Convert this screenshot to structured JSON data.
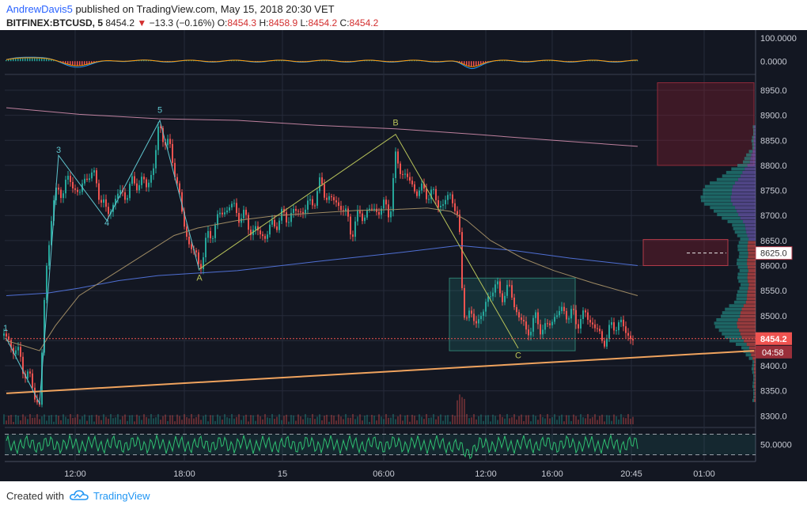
{
  "header": {
    "author": "AndrewDavis5",
    "published": "published on TradingView.com, May 15, 2018 20:30 VET",
    "symbol": "BITFINEX:BTCUSD, 5",
    "last": "8454.2",
    "change": "−13.3 (−0.16%)",
    "o_label": "O:",
    "o": "8454.3",
    "h_label": "H:",
    "h": "8458.9",
    "l_label": "L:",
    "l": "8454.2",
    "c_label": "C:",
    "c": "8454.2"
  },
  "footer": {
    "created_with": "Created with",
    "brand": "TradingView"
  },
  "colors": {
    "background": "#131722",
    "grid": "#262b3a",
    "up": "#26a69a",
    "down": "#ef5350",
    "trendline": "#f0a35e",
    "wave": "#5fc6cf",
    "abc": "#b8c35a",
    "ma_long": "#e89bbd",
    "ma_mid": "#9e8a63",
    "ma_blue": "#4f6fd3"
  },
  "chart_data": {
    "type": "candlestick",
    "symbol": "BITFINEX:BTCUSD",
    "interval": "5",
    "ylim": [
      8280,
      8980
    ],
    "y_ticks": [
      8300,
      8350,
      8400,
      8450,
      8500,
      8550,
      8600,
      8650,
      8700,
      8750,
      8800,
      8850,
      8900,
      8950
    ],
    "y_tick_labels": [
      "8300.0",
      "8350.0",
      "8400.0",
      "8450.0",
      "8500.0",
      "8550.0",
      "8600.0",
      "8650.0",
      "8700.0",
      "8750.0",
      "8800.0",
      "8850.0",
      "8900.0",
      "8950.0"
    ],
    "x_tick_labels": [
      "12:00",
      "18:00",
      "15",
      "06:00",
      "12:00",
      "16:00",
      "20:45",
      "01:00"
    ],
    "x_tick_t": [
      95,
      233,
      357,
      485,
      614,
      698,
      798,
      890
    ],
    "last_price": 8454.2,
    "last_price_label": "8454.2",
    "countdown_label": "04:58",
    "target_price_label": "8625.0",
    "target_price": 8625,
    "keypoints": [
      [
        5,
        8460
      ],
      [
        20,
        8430
      ],
      [
        35,
        8380
      ],
      [
        50,
        8320
      ],
      [
        57,
        8560
      ],
      [
        66,
        8720
      ],
      [
        75,
        8750
      ],
      [
        90,
        8770
      ],
      [
        100,
        8740
      ],
      [
        112,
        8790
      ],
      [
        123,
        8760
      ],
      [
        135,
        8700
      ],
      [
        148,
        8740
      ],
      [
        160,
        8745
      ],
      [
        172,
        8770
      ],
      [
        185,
        8760
      ],
      [
        195,
        8800
      ],
      [
        201,
        8880
      ],
      [
        212,
        8840
      ],
      [
        222,
        8790
      ],
      [
        230,
        8700
      ],
      [
        238,
        8650
      ],
      [
        252,
        8600
      ],
      [
        262,
        8650
      ],
      [
        278,
        8700
      ],
      [
        290,
        8720
      ],
      [
        305,
        8700
      ],
      [
        320,
        8670
      ],
      [
        335,
        8660
      ],
      [
        350,
        8690
      ],
      [
        365,
        8700
      ],
      [
        380,
        8710
      ],
      [
        392,
        8720
      ],
      [
        405,
        8760
      ],
      [
        418,
        8730
      ],
      [
        432,
        8720
      ],
      [
        444,
        8670
      ],
      [
        455,
        8700
      ],
      [
        470,
        8710
      ],
      [
        485,
        8715
      ],
      [
        493,
        8710
      ],
      [
        500,
        8810
      ],
      [
        508,
        8790
      ],
      [
        520,
        8760
      ],
      [
        532,
        8745
      ],
      [
        540,
        8750
      ],
      [
        552,
        8730
      ],
      [
        560,
        8720
      ],
      [
        568,
        8740
      ],
      [
        574,
        8730
      ],
      [
        580,
        8680
      ],
      [
        585,
        8520
      ],
      [
        596,
        8490
      ],
      [
        610,
        8500
      ],
      [
        622,
        8560
      ],
      [
        632,
        8545
      ],
      [
        645,
        8550
      ],
      [
        655,
        8500
      ],
      [
        665,
        8470
      ],
      [
        678,
        8490
      ],
      [
        690,
        8470
      ],
      [
        700,
        8500
      ],
      [
        715,
        8510
      ],
      [
        728,
        8490
      ],
      [
        740,
        8500
      ],
      [
        750,
        8485
      ],
      [
        760,
        8450
      ],
      [
        770,
        8465
      ],
      [
        780,
        8490
      ],
      [
        790,
        8470
      ],
      [
        800,
        8454
      ]
    ],
    "overlays": {
      "ma_pink": [
        [
          8,
          8915
        ],
        [
          100,
          8902
        ],
        [
          200,
          8893
        ],
        [
          300,
          8890
        ],
        [
          400,
          8880
        ],
        [
          500,
          8873
        ],
        [
          600,
          8862
        ],
        [
          700,
          8850
        ],
        [
          806,
          8838
        ]
      ],
      "ma_blue": [
        [
          8,
          8540
        ],
        [
          60,
          8545
        ],
        [
          100,
          8555
        ],
        [
          150,
          8570
        ],
        [
          200,
          8580
        ],
        [
          300,
          8590
        ],
        [
          400,
          8608
        ],
        [
          500,
          8625
        ],
        [
          580,
          8640
        ],
        [
          650,
          8630
        ],
        [
          720,
          8615
        ],
        [
          806,
          8600
        ]
      ],
      "ma_tan": [
        [
          8,
          8450
        ],
        [
          30,
          8440
        ],
        [
          50,
          8430
        ],
        [
          70,
          8480
        ],
        [
          100,
          8540
        ],
        [
          140,
          8580
        ],
        [
          180,
          8620
        ],
        [
          220,
          8660
        ],
        [
          250,
          8675
        ],
        [
          300,
          8690
        ],
        [
          350,
          8700
        ],
        [
          400,
          8705
        ],
        [
          450,
          8710
        ],
        [
          500,
          8712
        ],
        [
          540,
          8715
        ],
        [
          570,
          8708
        ],
        [
          590,
          8690
        ],
        [
          620,
          8650
        ],
        [
          660,
          8615
        ],
        [
          700,
          8590
        ],
        [
          750,
          8565
        ],
        [
          806,
          8540
        ]
      ],
      "support_line": [
        [
          8,
          8345
        ],
        [
          953,
          8430
        ]
      ]
    },
    "wave_labels": [
      {
        "t": 7,
        "p": 8470,
        "label": "1"
      },
      {
        "t": 74,
        "p": 8825,
        "label": "3"
      },
      {
        "t": 135,
        "p": 8680,
        "label": "4"
      },
      {
        "t": 202,
        "p": 8905,
        "label": "5"
      },
      {
        "t": 252,
        "p": 8570,
        "label": "A"
      },
      {
        "t": 500,
        "p": 8880,
        "label": "B"
      },
      {
        "t": 655,
        "p": 8415,
        "label": "C"
      }
    ],
    "wave_path": [
      [
        8,
        8455
      ],
      [
        50,
        8325
      ],
      [
        74,
        8820
      ],
      [
        135,
        8690
      ],
      [
        202,
        8890
      ],
      [
        252,
        8590
      ]
    ],
    "abc_path": [
      [
        252,
        8593
      ],
      [
        500,
        8862
      ],
      [
        655,
        8435
      ]
    ],
    "zones": {
      "sell_zone": {
        "t0": 831,
        "t1": 953,
        "p0": 8800,
        "p1": 8965
      },
      "target_zone": {
        "t0": 813,
        "t1": 920,
        "p0": 8600,
        "p1": 8652
      },
      "consolidation_box": {
        "t0": 568,
        "t1": 727,
        "p0": 8430,
        "p1": 8575
      }
    },
    "macd": {
      "ticks": [
        "100.0000",
        "0.0000"
      ],
      "tick_values": [
        100,
        0
      ],
      "range": [
        -40,
        120
      ]
    },
    "rsi": {
      "ticks": [
        "50.0000"
      ],
      "tick_values": [
        50
      ],
      "range": [
        20,
        80
      ],
      "bands": [
        30,
        70
      ]
    }
  }
}
